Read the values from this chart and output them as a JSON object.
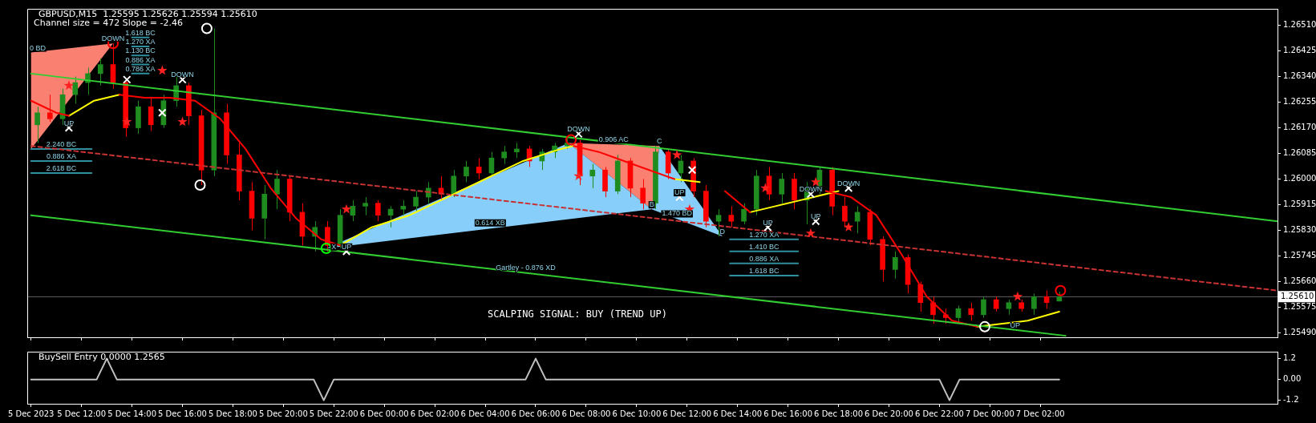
{
  "chart_data": [
    {
      "type": "candlestick",
      "title": "GBPUSD,M15  1.25595 1.25626 1.25594 1.25610",
      "subtitle": "Channel size = 472 Slope = -2.46",
      "xlim": [
        "2023-12-05T09:51",
        "2023-12-07T11:24"
      ],
      "xticks": [
        {
          "value": "2023-12-05T10:00",
          "label": null
        },
        {
          "value": "2023-12-05T12:00",
          "label": null
        },
        {
          "value": "2023-12-05T14:00",
          "label": null
        },
        {
          "value": "2023-12-05T16:00",
          "label": null
        },
        {
          "value": "2023-12-05T18:00",
          "label": null
        },
        {
          "value": "2023-12-05T20:00",
          "label": null
        },
        {
          "value": "2023-12-05T22:00",
          "label": null
        },
        {
          "value": "2023-12-06T00:00",
          "label": null
        },
        {
          "value": "2023-12-06T02:00",
          "label": null
        },
        {
          "value": "2023-12-06T04:00",
          "label": null
        },
        {
          "value": "2023-12-06T06:00",
          "label": null
        },
        {
          "value": "2023-12-06T08:00",
          "label": null
        },
        {
          "value": "2023-12-06T10:00",
          "label": null
        },
        {
          "value": "2023-12-06T12:00",
          "label": null
        },
        {
          "value": "2023-12-06T14:00",
          "label": null
        },
        {
          "value": "2023-12-06T16:00",
          "label": null
        },
        {
          "value": "2023-12-06T18:00",
          "label": null
        },
        {
          "value": "2023-12-06T20:00",
          "label": null
        },
        {
          "value": "2023-12-06T22:00",
          "label": null
        },
        {
          "value": "2023-12-07T00:00",
          "label": null
        },
        {
          "value": "2023-12-07T02:00",
          "label": null
        }
      ],
      "ylim": [
        1.25475,
        1.26565
      ],
      "yticks": [
        {
          "value": 1.2651,
          "label": "1.26510"
        },
        1.26425,
        {
          "value": 1.2634,
          "label": "1.26340"
        },
        1.26255,
        {
          "value": 1.2617,
          "label": "1.26170"
        },
        1.26085,
        {
          "value": 1.26,
          "label": "1.26000"
        },
        1.25915,
        {
          "value": 1.2583,
          "label": "1.25830"
        },
        1.25745,
        {
          "value": 1.2566,
          "label": "1.25660"
        },
        1.25575,
        {
          "value": 1.2549,
          "label": "1.25490"
        }
      ],
      "tick_labels": "y",
      "ref_lines": [
        {
          "axis": "y",
          "value": 1.2561,
          "label": "1.25610"
        }
      ],
      "series": [
        {
          "type": "area",
          "color": "#fa8072",
          "x": [
            "2023-12-05T10:00",
            "2023-12-05T13:15",
            "2023-12-05T10:00",
            "2023-12-05T10:00"
          ],
          "values": [
            1.2642,
            1.2645,
            1.261,
            1.2642
          ]
        },
        {
          "type": "area",
          "color": "#87cefa",
          "x": [
            "2023-12-05T21:42",
            "2023-12-06T07:18",
            "2023-12-06T10:36",
            "2023-12-05T21:42"
          ],
          "values": [
            1.2577,
            1.2612,
            1.259,
            1.2577
          ]
        },
        {
          "type": "area",
          "color": "#fa8072",
          "x": [
            "2023-12-06T07:18",
            "2023-12-06T10:54",
            "2023-12-06T10:36",
            "2023-12-06T07:18"
          ],
          "values": [
            1.2612,
            1.2611,
            1.259,
            1.2612
          ]
        },
        {
          "type": "area",
          "color": "#87cefa",
          "x": [
            "2023-12-06T10:36",
            "2023-12-06T10:54",
            "2023-12-06T13:24",
            "2023-12-06T10:36"
          ],
          "values": [
            1.259,
            1.2611,
            1.2581,
            1.259
          ]
        },
        {
          "color": "#1e8c1e",
          "x": [
            "2023-12-05T10:15",
            "2023-12-05T11:15",
            "2023-12-05T11:45",
            "2023-12-05T12:15",
            "2023-12-05T12:45",
            "2023-12-05T14:15",
            "2023-12-05T15:15",
            "2023-12-05T15:45",
            "2023-12-05T17:15",
            "2023-12-05T19:15",
            "2023-12-05T19:45",
            "2023-12-05T21:15",
            "2023-12-05T22:15",
            "2023-12-05T22:45",
            "2023-12-05T23:15",
            "2023-12-06T00:15",
            "2023-12-06T00:45",
            "2023-12-06T01:15",
            "2023-12-06T01:45",
            "2023-12-06T02:45",
            "2023-12-06T03:15",
            "2023-12-06T04:15",
            "2023-12-06T04:45",
            "2023-12-06T05:15",
            "2023-12-06T06:15",
            "2023-12-06T06:45",
            "2023-12-06T07:15",
            "2023-12-06T08:15",
            "2023-12-06T09:15",
            "2023-12-06T10:45",
            "2023-12-06T11:45",
            "2023-12-06T13:15",
            "2023-12-06T14:15",
            "2023-12-06T14:45",
            "2023-12-06T15:45",
            "2023-12-06T16:45",
            "2023-12-06T17:15",
            "2023-12-06T18:45",
            "2023-12-06T20:15",
            "2023-12-06T22:45",
            "2023-12-06T23:45",
            "2023-12-07T00:45",
            "2023-12-07T01:45",
            "2023-12-07T02:45"
          ],
          "ohlc": [
            [
              1.2618,
              1.2624,
              1.2612,
              1.2622
            ],
            [
              1.262,
              1.263,
              1.2618,
              1.2628
            ],
            [
              1.2628,
              1.2634,
              1.2625,
              1.2632
            ],
            [
              1.2632,
              1.2637,
              1.2628,
              1.2635
            ],
            [
              1.2635,
              1.264,
              1.2631,
              1.2638
            ],
            [
              1.2617,
              1.2626,
              1.2615,
              1.2624
            ],
            [
              1.2618,
              1.2628,
              1.2617,
              1.2626
            ],
            [
              1.2626,
              1.2634,
              1.2624,
              1.2631
            ],
            [
              1.2603,
              1.265,
              1.2601,
              1.2622
            ],
            [
              1.2587,
              1.2598,
              1.258,
              1.2595
            ],
            [
              1.2595,
              1.2603,
              1.259,
              1.26
            ],
            [
              1.2581,
              1.2586,
              1.2576,
              1.2584
            ],
            [
              1.2578,
              1.259,
              1.2577,
              1.2588
            ],
            [
              1.2588,
              1.2593,
              1.2586,
              1.2591
            ],
            [
              1.2591,
              1.2594,
              1.2588,
              1.2592
            ],
            [
              1.2588,
              1.2591,
              1.2584,
              1.259
            ],
            [
              1.259,
              1.2593,
              1.2588,
              1.2591
            ],
            [
              1.2591,
              1.2596,
              1.2589,
              1.2594
            ],
            [
              1.2594,
              1.2599,
              1.2592,
              1.2597
            ],
            [
              1.2595,
              1.2603,
              1.2594,
              1.2601
            ],
            [
              1.2601,
              1.2606,
              1.2599,
              1.2604
            ],
            [
              1.2602,
              1.2609,
              1.2601,
              1.2607
            ],
            [
              1.2607,
              1.2611,
              1.2605,
              1.2609
            ],
            [
              1.2609,
              1.2612,
              1.2607,
              1.261
            ],
            [
              1.2606,
              1.261,
              1.2603,
              1.2609
            ],
            [
              1.2609,
              1.2612,
              1.2607,
              1.2611
            ],
            [
              1.2611,
              1.2614,
              1.261,
              1.2612
            ],
            [
              1.2601,
              1.2605,
              1.2597,
              1.2603
            ],
            [
              1.2596,
              1.2608,
              1.2595,
              1.2606
            ],
            [
              1.2592,
              1.2611,
              1.259,
              1.2609
            ],
            [
              1.2602,
              1.2608,
              1.2599,
              1.2606
            ],
            [
              1.2586,
              1.259,
              1.2581,
              1.2588
            ],
            [
              1.2586,
              1.2592,
              1.2585,
              1.259
            ],
            [
              1.259,
              1.2603,
              1.2588,
              1.2601
            ],
            [
              1.2595,
              1.2602,
              1.2592,
              1.26
            ],
            [
              1.2593,
              1.2599,
              1.2585,
              1.2597
            ],
            [
              1.2597,
              1.2604,
              1.2595,
              1.2603
            ],
            [
              1.2586,
              1.2591,
              1.2582,
              1.2589
            ],
            [
              1.257,
              1.2576,
              1.2567,
              1.2574
            ],
            [
              1.2554,
              1.2558,
              1.2552,
              1.2557
            ],
            [
              1.2555,
              1.2561,
              1.2554,
              1.256
            ],
            [
              1.2557,
              1.256,
              1.2555,
              1.2559
            ],
            [
              1.2557,
              1.2562,
              1.2555,
              1.2561
            ],
            [
              1.25595,
              1.25626,
              1.25594,
              1.2561
            ]
          ]
        },
        {
          "color": "#ff0000",
          "x": [
            "2023-12-05T10:45",
            "2023-12-05T13:15",
            "2023-12-05T13:45",
            "2023-12-05T14:45",
            "2023-12-05T16:15",
            "2023-12-05T16:45",
            "2023-12-05T17:45",
            "2023-12-05T18:15",
            "2023-12-05T18:45",
            "2023-12-05T20:15",
            "2023-12-05T20:45",
            "2023-12-05T21:45",
            "2023-12-05T23:45",
            "2023-12-06T02:15",
            "2023-12-06T03:45",
            "2023-12-06T05:45",
            "2023-12-06T07:45",
            "2023-12-06T08:45",
            "2023-12-06T09:45",
            "2023-12-06T10:15",
            "2023-12-06T11:15",
            "2023-12-06T12:15",
            "2023-12-06T12:45",
            "2023-12-06T13:45",
            "2023-12-06T15:15",
            "2023-12-06T16:15",
            "2023-12-06T17:45",
            "2023-12-06T18:15",
            "2023-12-06T19:15",
            "2023-12-06T19:45",
            "2023-12-06T20:45",
            "2023-12-06T21:15",
            "2023-12-06T21:45",
            "2023-12-06T22:15",
            "2023-12-06T23:15",
            "2023-12-07T00:15",
            "2023-12-07T01:15",
            "2023-12-07T02:15"
          ],
          "ohlc": [
            [
              1.2622,
              1.2628,
              1.2619,
              1.262
            ],
            [
              1.2638,
              1.2645,
              1.263,
              1.2632
            ],
            [
              1.2632,
              1.2633,
              1.2614,
              1.2617
            ],
            [
              1.2624,
              1.2627,
              1.2616,
              1.2618
            ],
            [
              1.2631,
              1.2632,
              1.2618,
              1.2621
            ],
            [
              1.2621,
              1.2623,
              1.2598,
              1.2603
            ],
            [
              1.2622,
              1.2625,
              1.2605,
              1.2608
            ],
            [
              1.2608,
              1.2612,
              1.2593,
              1.2596
            ],
            [
              1.2596,
              1.2599,
              1.2583,
              1.2587
            ],
            [
              1.26,
              1.2601,
              1.2586,
              1.2589
            ],
            [
              1.2589,
              1.2592,
              1.2578,
              1.2581
            ],
            [
              1.2584,
              1.2586,
              1.2576,
              1.2578
            ],
            [
              1.2592,
              1.2593,
              1.2586,
              1.2588
            ],
            [
              1.2597,
              1.2601,
              1.2593,
              1.2595
            ],
            [
              1.2604,
              1.2607,
              1.26,
              1.2602
            ],
            [
              1.261,
              1.2611,
              1.2604,
              1.2606
            ],
            [
              1.2612,
              1.2613,
              1.2598,
              1.2601
            ],
            [
              1.2603,
              1.2604,
              1.2594,
              1.2596
            ],
            [
              1.2606,
              1.2607,
              1.2594,
              1.2597
            ],
            [
              1.2597,
              1.26,
              1.259,
              1.2592
            ],
            [
              1.2609,
              1.261,
              1.26,
              1.2602
            ],
            [
              1.2606,
              1.2607,
              1.2594,
              1.2596
            ],
            [
              1.2596,
              1.2598,
              1.2584,
              1.2586
            ],
            [
              1.2588,
              1.2591,
              1.2584,
              1.2586
            ],
            [
              1.2601,
              1.2604,
              1.2593,
              1.2595
            ],
            [
              1.26,
              1.2602,
              1.259,
              1.2593
            ],
            [
              1.2603,
              1.2604,
              1.2588,
              1.2591
            ],
            [
              1.2591,
              1.2594,
              1.2584,
              1.2586
            ],
            [
              1.2589,
              1.259,
              1.2578,
              1.258
            ],
            [
              1.258,
              1.2581,
              1.2566,
              1.257
            ],
            [
              1.2574,
              1.2575,
              1.2562,
              1.2565
            ],
            [
              1.2565,
              1.2566,
              1.2556,
              1.2559
            ],
            [
              1.2559,
              1.2561,
              1.2552,
              1.2555
            ],
            [
              1.2555,
              1.2557,
              1.2552,
              1.2554
            ],
            [
              1.2557,
              1.2559,
              1.2553,
              1.2555
            ],
            [
              1.256,
              1.2561,
              1.2556,
              1.2557
            ],
            [
              1.2559,
              1.256,
              1.2556,
              1.2557
            ],
            [
              1.2561,
              1.2563,
              1.2557,
              1.2559
            ]
          ]
        },
        {
          "type": "line",
          "color": "#32cd32",
          "x": [
            "2023-12-05T10:00",
            "2023-12-07T11:24"
          ],
          "values": [
            1.2635,
            1.2586
          ]
        },
        {
          "type": "line",
          "color": "#32cd32",
          "x": [
            "2023-12-05T10:00",
            "2023-12-07T03:00"
          ],
          "values": [
            1.2588,
            1.2548
          ]
        },
        {
          "type": "line",
          "color": "#c83232",
          "line_style": "dashed",
          "x": [
            "2023-12-05T10:00",
            "2023-12-07T11:24"
          ],
          "values": [
            1.2611,
            1.2563
          ]
        },
        {
          "type": "line",
          "color": "#ff0000",
          "x": [
            "2023-12-05T10:00",
            "2023-12-05T10:30",
            "2023-12-05T11:00",
            "2023-12-05T11:30",
            "2023-12-05T12:30",
            "2023-12-05T13:30",
            "2023-12-05T14:30",
            "2023-12-05T15:30",
            "2023-12-05T16:30",
            "2023-12-05T17:30",
            "2023-12-05T18:30",
            "2023-12-05T19:30",
            "2023-12-05T20:30",
            "2023-12-05T21:30",
            "2023-12-05T22:15",
            "2023-12-06T03:00",
            "2023-12-06T07:30",
            "2023-12-06T08:30",
            "2023-12-06T09:30",
            "2023-12-06T10:30",
            "2023-12-06T11:30",
            "2023-12-06T12:30",
            "2023-12-06T13:30",
            "2023-12-06T14:30",
            "2023-12-06T16:00",
            "2023-12-06T17:30",
            "2023-12-06T18:30",
            "2023-12-06T19:30",
            "2023-12-06T20:30",
            "2023-12-06T21:30",
            "2023-12-06T22:30",
            "2023-12-06T23:30"
          ],
          "values": [
            1.2626,
            1.2624,
            1.2622,
            1.2621,
            null,
            1.2628,
            1.2627,
            1.2627,
            1.2626,
            1.262,
            1.261,
            1.2597,
            1.2587,
            1.258,
            1.2578,
            null,
            1.2611,
            1.2609,
            1.2606,
            1.2603,
            1.26,
            null,
            1.2596,
            1.2589,
            null,
            1.2596,
            1.2594,
            1.2588,
            1.2575,
            1.2561,
            1.2553,
            1.2551
          ]
        },
        {
          "type": "line",
          "color": "#ffff00",
          "x": [
            "2023-12-05T11:30",
            "2023-12-05T12:30",
            "2023-12-05T13:30",
            "2023-12-05T14:00",
            "2023-12-05T22:15",
            "2023-12-05T23:30",
            "2023-12-06T01:00",
            "2023-12-06T02:30",
            "2023-12-06T04:00",
            "2023-12-06T05:30",
            "2023-12-06T07:00",
            "2023-12-06T07:30",
            "2023-12-06T08:00",
            "2023-12-06T11:30",
            "2023-12-06T12:30",
            "2023-12-06T13:00",
            "2023-12-06T14:30",
            "2023-12-06T15:30",
            "2023-12-06T16:30",
            "2023-12-06T17:30",
            "2023-12-06T18:00",
            "2023-12-06T19:00",
            "2023-12-06T23:30",
            "2023-12-07T00:30",
            "2023-12-07T01:30",
            "2023-12-07T02:45"
          ],
          "values": [
            1.2621,
            1.2626,
            1.2628,
            null,
            1.2578,
            1.2584,
            1.2588,
            1.2594,
            1.26,
            1.2606,
            1.261,
            1.2611,
            null,
            1.26,
            1.2599,
            null,
            1.2589,
            1.2591,
            1.2593,
            1.2595,
            1.2596,
            null,
            1.2551,
            1.2552,
            1.2553,
            1.2556
          ]
        },
        {
          "type": "line",
          "color": "#2f8f9f",
          "x": [
            "2023-12-05T14:00",
            "2023-12-05T14:40"
          ],
          "values": [
            1.2647,
            1.2647
          ]
        },
        {
          "type": "line",
          "color": "#2f8f9f",
          "x": [
            "2023-12-05T14:00",
            "2023-12-05T14:40"
          ],
          "values": [
            1.2644,
            1.2644
          ]
        },
        {
          "type": "line",
          "color": "#2f8f9f",
          "x": [
            "2023-12-05T14:00",
            "2023-12-05T14:40"
          ],
          "values": [
            1.2641,
            1.2641
          ]
        },
        {
          "type": "line",
          "color": "#2f8f9f",
          "x": [
            "2023-12-05T14:00",
            "2023-12-05T14:40"
          ],
          "values": [
            1.2638,
            1.2638
          ]
        },
        {
          "type": "line",
          "color": "#2f8f9f",
          "x": [
            "2023-12-05T14:00",
            "2023-12-05T14:40"
          ],
          "values": [
            1.2635,
            1.2635
          ]
        },
        {
          "type": "line",
          "color": "#2f8f9f",
          "x": [
            "2023-12-05T10:00",
            "2023-12-05T12:24"
          ],
          "values": [
            1.261,
            1.261
          ]
        },
        {
          "type": "line",
          "color": "#2f8f9f",
          "x": [
            "2023-12-05T10:00",
            "2023-12-05T12:24"
          ],
          "values": [
            1.2606,
            1.2606
          ]
        },
        {
          "type": "line",
          "color": "#2f8f9f",
          "x": [
            "2023-12-05T10:00",
            "2023-12-05T12:24"
          ],
          "values": [
            1.2602,
            1.2602
          ]
        },
        {
          "type": "line",
          "color": "#2f8f9f",
          "x": [
            "2023-12-06T13:42",
            "2023-12-06T16:24"
          ],
          "values": [
            1.258,
            1.258
          ]
        },
        {
          "type": "line",
          "color": "#2f8f9f",
          "x": [
            "2023-12-06T13:42",
            "2023-12-06T16:24"
          ],
          "values": [
            1.2576,
            1.2576
          ]
        },
        {
          "type": "line",
          "color": "#2f8f9f",
          "x": [
            "2023-12-06T13:42",
            "2023-12-06T16:24"
          ],
          "values": [
            1.2572,
            1.2572
          ]
        },
        {
          "type": "line",
          "color": "#2f8f9f",
          "x": [
            "2023-12-06T13:42",
            "2023-12-06T16:24"
          ],
          "values": [
            1.2568,
            1.2568
          ]
        },
        {
          "type": "scatter",
          "marker": "star",
          "color": "#ff2020",
          "x": [
            "2023-12-05T11:30",
            "2023-12-05T13:48",
            "2023-12-05T15:12",
            "2023-12-05T16:00",
            "2023-12-05T22:30",
            "2023-12-06T07:42",
            "2023-12-06T11:36",
            "2023-12-06T12:06",
            "2023-12-06T15:06",
            "2023-12-06T17:06",
            "2023-12-06T16:54",
            "2023-12-06T18:24",
            "2023-12-07T01:06"
          ],
          "values": [
            1.2631,
            1.2619,
            1.2636,
            1.2619,
            1.259,
            1.2601,
            1.2608,
            1.259,
            1.2597,
            1.2599,
            1.2582,
            1.2584,
            1.2561
          ]
        },
        {
          "type": "scatter",
          "marker": "cross",
          "color": "#ffffff",
          "x": [
            "2023-12-05T13:48",
            "2023-12-05T11:30",
            "2023-12-05T16:00",
            "2023-12-05T15:12",
            "2023-12-05T22:30",
            "2023-12-06T07:42",
            "2023-12-06T12:12",
            "2023-12-06T11:42",
            "2023-12-06T15:12",
            "2023-12-06T16:54",
            "2023-12-06T17:06",
            "2023-12-06T18:24"
          ],
          "values": [
            1.2633,
            1.2617,
            1.2633,
            1.2622,
            1.2576,
            1.2615,
            1.2603,
            1.2594,
            1.2584,
            1.2595,
            1.2586,
            1.2597
          ]
        },
        {
          "type": "scatter",
          "marker": "circle",
          "x": [
            "2023-12-05T13:15",
            "2023-12-05T16:58",
            "2023-12-05T16:42",
            "2023-12-05T21:42",
            "2023-12-06T07:24",
            "2023-12-06T23:48",
            "2023-12-07T02:48"
          ],
          "values": [
            1.2645,
            1.265,
            1.2598,
            1.2577,
            1.2613,
            1.2551,
            1.2563
          ],
          "colors": [
            "#ff0000",
            "#ffffff",
            "#ffffff",
            "#00ff00",
            "#ff0000",
            "#ffffff",
            "#ff0000"
          ]
        }
      ],
      "annotations": [
        "SCALPING SIGNAL: BUY (TREND UP)",
        {
          "text": "DOWN",
          "x": "2023-12-05T13:15",
          "y": 1.2645
        },
        {
          "text": "DOWN",
          "x": "2023-12-05T16:00",
          "y": 1.2633
        },
        {
          "text": "UP",
          "x": "2023-12-05T11:30",
          "y": 1.2617
        },
        {
          "text": "UP",
          "x": "2023-12-05T22:30",
          "y": 1.2576
        },
        {
          "text": "DOWN",
          "x": "2023-12-06T07:42",
          "y": 1.2615
        },
        {
          "text": "UP",
          "x": "2023-12-06T11:42",
          "y": 1.2594
        },
        {
          "text": "UP",
          "x": "2023-12-06T15:12",
          "y": 1.2584
        },
        {
          "text": "DOWN",
          "x": "2023-12-06T16:54",
          "y": 1.2595
        },
        {
          "text": "UP",
          "x": "2023-12-06T17:06",
          "y": 1.2586
        },
        {
          "text": "DOWN",
          "x": "2023-12-06T18:24",
          "y": 1.2597
        },
        {
          "text": "UP",
          "x": "2023-12-07T01:00",
          "y": 1.255
        },
        {
          "text": "X",
          "x": "2023-12-05T22:00",
          "y": 1.2576
        },
        {
          "text": "B",
          "x": "2023-12-06T10:36",
          "y": 1.259
        },
        {
          "text": "C",
          "x": "2023-12-06T10:54",
          "y": 1.2611
        },
        {
          "text": "D",
          "x": "2023-12-06T13:24",
          "y": 1.2581
        },
        {
          "text": "0.614 XB",
          "x": "2023-12-06T04:12",
          "y": 1.2584
        },
        {
          "text": "Gartley - 0.876 XD",
          "x": "2023-12-06T05:36",
          "y": 1.2569
        },
        {
          "text": "0.906 AC",
          "x": "2023-12-06T09:06",
          "y": 1.26115
        },
        {
          "text": "1.470 BD",
          "x": "2023-12-06T11:36",
          "y": 1.2587
        },
        {
          "text": "1.270 XA",
          "x": "2023-12-06T15:03",
          "y": 1.258
        },
        {
          "text": "1.410 BC",
          "x": "2023-12-06T15:03",
          "y": 1.2576
        },
        {
          "text": "0.886 XA",
          "x": "2023-12-06T15:03",
          "y": 1.2572
        },
        {
          "text": "1.618 BC",
          "x": "2023-12-06T15:03",
          "y": 1.2568
        },
        {
          "text": "1.618 BC",
          "x": "2023-12-05T14:20",
          "y": 1.2647
        },
        {
          "text": "1.270 XA",
          "x": "2023-12-05T14:20",
          "y": 1.2644
        },
        {
          "text": "1.130 BC",
          "x": "2023-12-05T14:20",
          "y": 1.2641
        },
        {
          "text": "0.886 XA",
          "x": "2023-12-05T14:20",
          "y": 1.2638
        },
        {
          "text": "0.786 XA",
          "x": "2023-12-05T14:20",
          "y": 1.2635
        },
        {
          "text": "0 BD",
          "x": "2023-12-05T10:00",
          "y": 1.2642
        },
        {
          "text": "2.240 BC",
          "x": "2023-12-05T11:12",
          "y": 1.261
        },
        {
          "text": "0.886 XA",
          "x": "2023-12-05T11:12",
          "y": 1.2606
        },
        {
          "text": "2.618 BC",
          "x": "2023-12-05T11:12",
          "y": 1.2602
        }
      ]
    },
    {
      "type": "line",
      "title": "BuySell Entry 0.0000 1.2565",
      "xlim": [
        "2023-12-05T09:51",
        "2023-12-07T11:24"
      ],
      "xticks": [
        {
          "value": "2023-12-05T10:00",
          "label": "5 Dec 2023"
        },
        {
          "value": "2023-12-05T12:00",
          "label": "5 Dec 12:00"
        },
        {
          "value": "2023-12-05T14:00",
          "label": "5 Dec 14:00"
        },
        {
          "value": "2023-12-05T16:00",
          "label": "5 Dec 16:00"
        },
        {
          "value": "2023-12-05T18:00",
          "label": "5 Dec 18:00"
        },
        {
          "value": "2023-12-05T20:00",
          "label": "5 Dec 20:00"
        },
        {
          "value": "2023-12-05T22:00",
          "label": "5 Dec 22:00"
        },
        {
          "value": "2023-12-06T00:00",
          "label": "6 Dec 00:00"
        },
        {
          "value": "2023-12-06T02:00",
          "label": "6 Dec 02:00"
        },
        {
          "value": "2023-12-06T04:00",
          "label": "6 Dec 04:00"
        },
        {
          "value": "2023-12-06T06:00",
          "label": "6 Dec 06:00"
        },
        {
          "value": "2023-12-06T08:00",
          "label": "6 Dec 08:00"
        },
        {
          "value": "2023-12-06T10:00",
          "label": "6 Dec 10:00"
        },
        {
          "value": "2023-12-06T12:00",
          "label": "6 Dec 12:00"
        },
        {
          "value": "2023-12-06T14:00",
          "label": "6 Dec 14:00"
        },
        {
          "value": "2023-12-06T16:00",
          "label": "6 Dec 16:00"
        },
        {
          "value": "2023-12-06T18:00",
          "label": "6 Dec 18:00"
        },
        {
          "value": "2023-12-06T20:00",
          "label": "6 Dec 20:00"
        },
        {
          "value": "2023-12-06T22:00",
          "label": "6 Dec 22:00"
        },
        {
          "value": "2023-12-07T00:00",
          "label": "7 Dec 00:00"
        },
        {
          "value": "2023-12-07T02:00",
          "label": "7 Dec 02:00"
        }
      ],
      "ylim": [
        -1.4,
        1.6
      ],
      "yticks": [
        -1.2,
        {
          "value": 0,
          "label": "0.00"
        },
        1.2
      ],
      "series": [
        {
          "color": "#c0c0c0",
          "x": [
            "2023-12-05T10:00",
            "2023-12-05T12:36",
            "2023-12-05T13:00",
            "2023-12-05T13:24",
            "2023-12-05T21:12",
            "2023-12-05T21:36",
            "2023-12-05T22:00",
            "2023-12-06T05:36",
            "2023-12-06T06:00",
            "2023-12-06T06:24",
            "2023-12-06T22:00",
            "2023-12-06T22:24",
            "2023-12-06T22:48",
            "2023-12-07T02:45"
          ],
          "values": [
            0,
            0,
            1.2,
            0,
            0,
            -1.2,
            0,
            0,
            1.2,
            0,
            0,
            -1.2,
            0,
            0
          ]
        }
      ]
    }
  ]
}
